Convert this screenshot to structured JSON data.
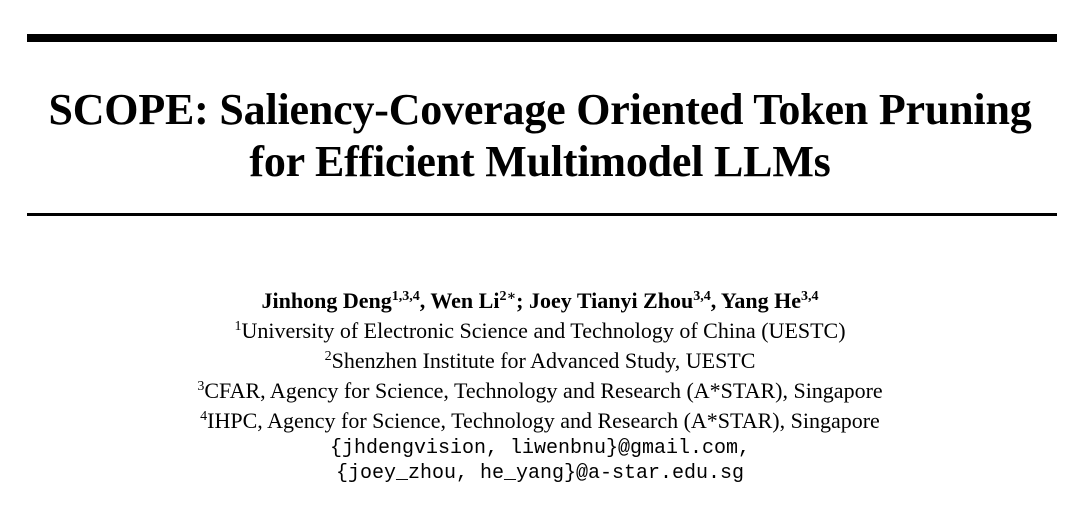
{
  "paper": {
    "title_line1": "SCOPE: Saliency-Coverage Oriented Token Pruning",
    "title_line2": "for Efficient Multimodel LLMs",
    "authors": [
      {
        "name": "Jinhong Deng",
        "marks": "1,3,4",
        "sep": ", "
      },
      {
        "name": "Wen Li",
        "marks": "2",
        "sep": "",
        "extra": "∗",
        "sep2": "; "
      },
      {
        "name": "Joey Tianyi Zhou",
        "marks": "3,4",
        "sep": ", "
      },
      {
        "name": "Yang He",
        "marks": "3,4",
        "sep": ""
      }
    ],
    "affiliations": [
      {
        "mark": "1",
        "text": "University of Electronic Science and Technology of China (UESTC)"
      },
      {
        "mark": "2",
        "text": "Shenzhen Institute for Advanced Study, UESTC"
      },
      {
        "mark": "3",
        "text": "CFAR, Agency for Science, Technology and Research (A*STAR), Singapore"
      },
      {
        "mark": "4",
        "text": "IHPC, Agency for Science, Technology and Research (A*STAR), Singapore"
      }
    ],
    "emails": [
      "{jhdengvision, liwenbnu}@gmail.com,",
      "{joey_zhou, he_yang}@a-star.edu.sg"
    ]
  }
}
